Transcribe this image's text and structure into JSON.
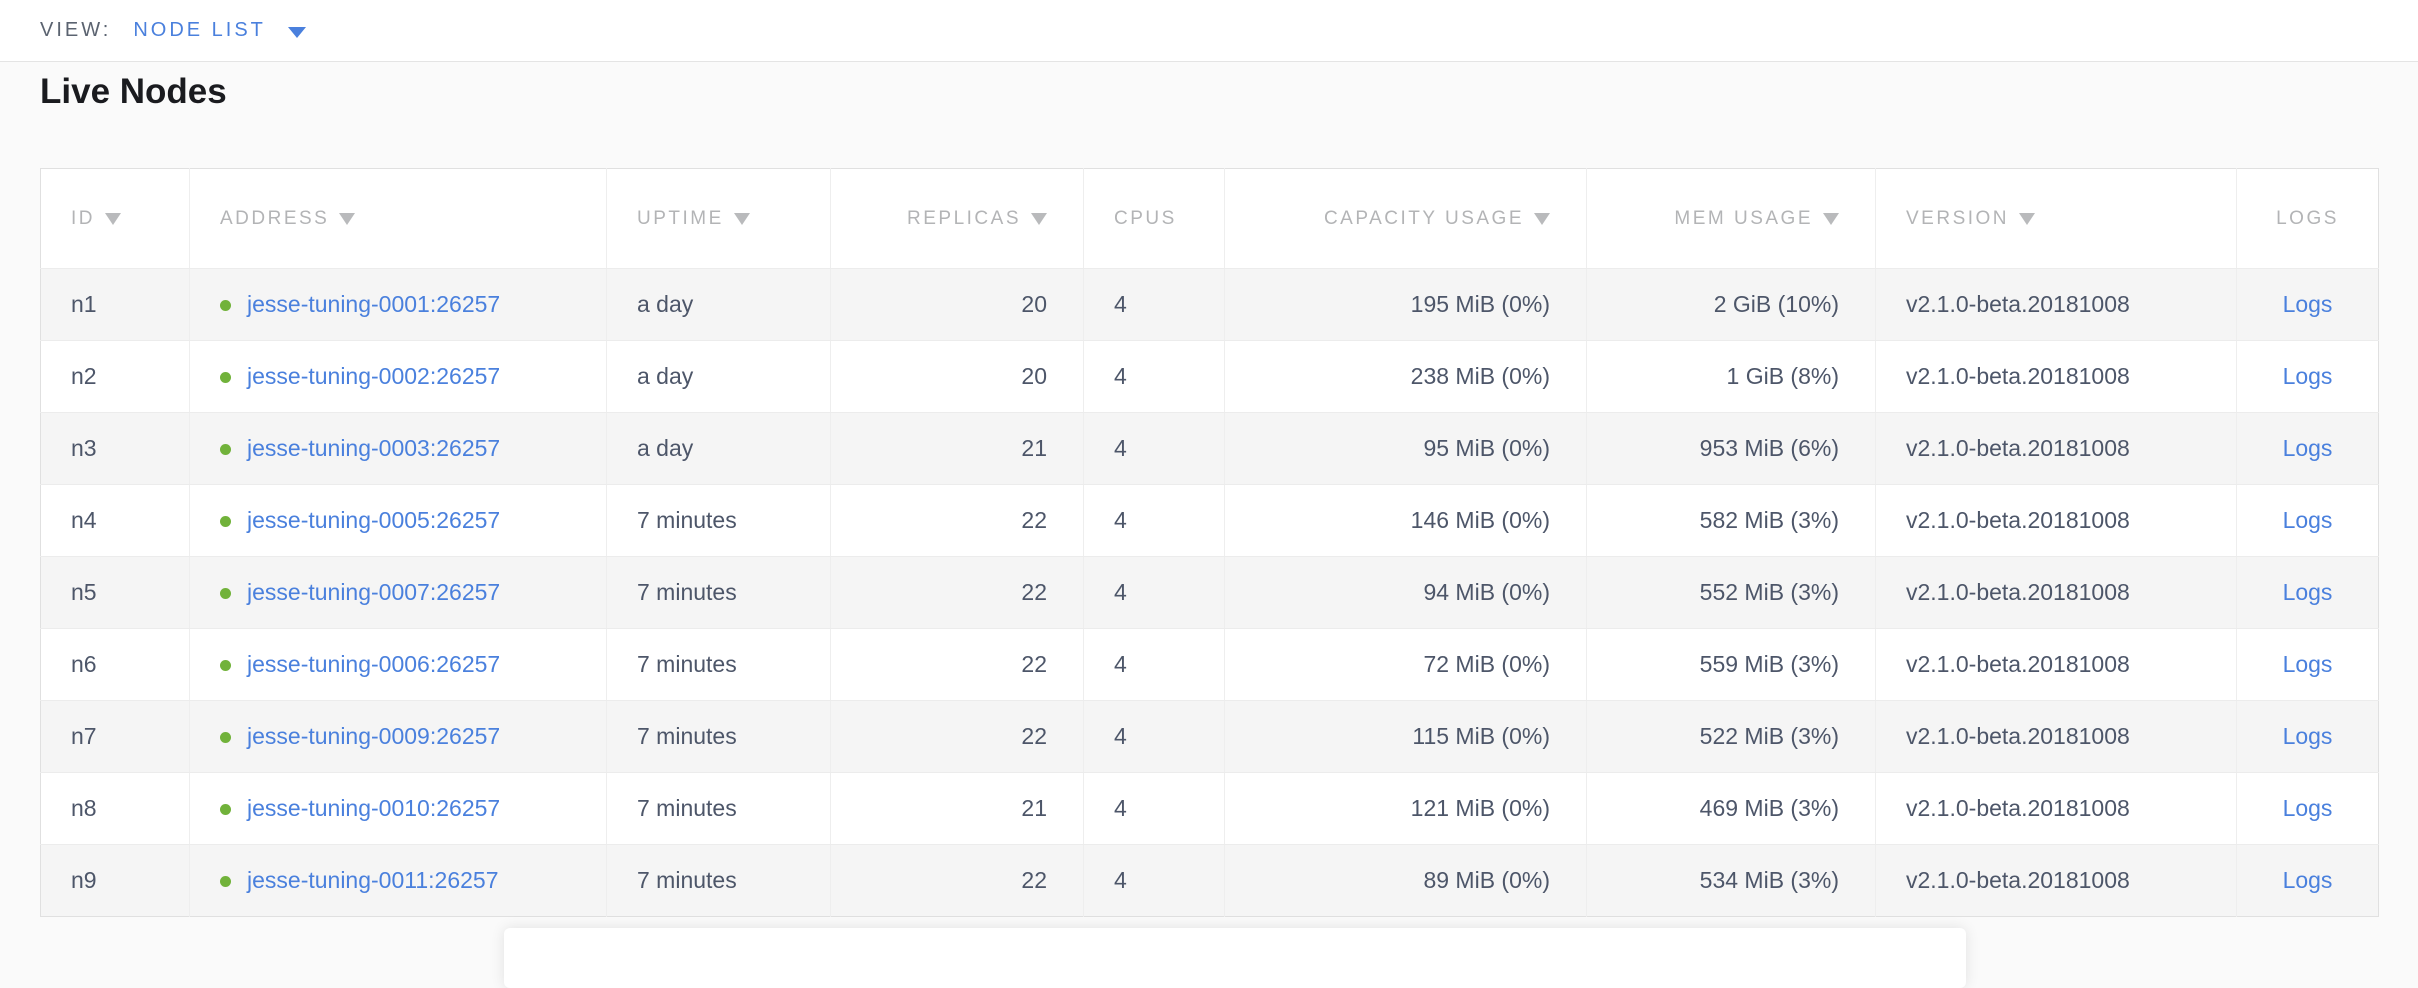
{
  "view_bar": {
    "label": "VIEW:",
    "selected_view": "NODE LIST"
  },
  "page": {
    "title": "Live Nodes"
  },
  "table": {
    "columns": [
      {
        "key": "id",
        "label": "ID",
        "sortable": true,
        "align": "left"
      },
      {
        "key": "address",
        "label": "ADDRESS",
        "sortable": true,
        "align": "left"
      },
      {
        "key": "uptime",
        "label": "UPTIME",
        "sortable": true,
        "align": "left"
      },
      {
        "key": "replicas",
        "label": "REPLICAS",
        "sortable": true,
        "align": "right"
      },
      {
        "key": "cpus",
        "label": "CPUS",
        "sortable": false,
        "align": "left"
      },
      {
        "key": "capacity",
        "label": "CAPACITY USAGE",
        "sortable": true,
        "align": "right"
      },
      {
        "key": "mem",
        "label": "MEM USAGE",
        "sortable": true,
        "align": "right"
      },
      {
        "key": "version",
        "label": "VERSION",
        "sortable": true,
        "align": "left"
      },
      {
        "key": "logs",
        "label": "LOGS",
        "sortable": false,
        "align": "center"
      }
    ],
    "rows": [
      {
        "id": "n1",
        "status": "live",
        "address": "jesse-tuning-0001:26257",
        "uptime": "a day",
        "replicas": "20",
        "cpus": "4",
        "capacity": "195 MiB (0%)",
        "mem": "2 GiB (10%)",
        "version": "v2.1.0-beta.20181008",
        "logs": "Logs"
      },
      {
        "id": "n2",
        "status": "live",
        "address": "jesse-tuning-0002:26257",
        "uptime": "a day",
        "replicas": "20",
        "cpus": "4",
        "capacity": "238 MiB (0%)",
        "mem": "1 GiB (8%)",
        "version": "v2.1.0-beta.20181008",
        "logs": "Logs"
      },
      {
        "id": "n3",
        "status": "live",
        "address": "jesse-tuning-0003:26257",
        "uptime": "a day",
        "replicas": "21",
        "cpus": "4",
        "capacity": "95 MiB (0%)",
        "mem": "953 MiB (6%)",
        "version": "v2.1.0-beta.20181008",
        "logs": "Logs"
      },
      {
        "id": "n4",
        "status": "live",
        "address": "jesse-tuning-0005:26257",
        "uptime": "7 minutes",
        "replicas": "22",
        "cpus": "4",
        "capacity": "146 MiB (0%)",
        "mem": "582 MiB (3%)",
        "version": "v2.1.0-beta.20181008",
        "logs": "Logs"
      },
      {
        "id": "n5",
        "status": "live",
        "address": "jesse-tuning-0007:26257",
        "uptime": "7 minutes",
        "replicas": "22",
        "cpus": "4",
        "capacity": "94 MiB (0%)",
        "mem": "552 MiB (3%)",
        "version": "v2.1.0-beta.20181008",
        "logs": "Logs"
      },
      {
        "id": "n6",
        "status": "live",
        "address": "jesse-tuning-0006:26257",
        "uptime": "7 minutes",
        "replicas": "22",
        "cpus": "4",
        "capacity": "72 MiB (0%)",
        "mem": "559 MiB (3%)",
        "version": "v2.1.0-beta.20181008",
        "logs": "Logs"
      },
      {
        "id": "n7",
        "status": "live",
        "address": "jesse-tuning-0009:26257",
        "uptime": "7 minutes",
        "replicas": "22",
        "cpus": "4",
        "capacity": "115 MiB (0%)",
        "mem": "522 MiB (3%)",
        "version": "v2.1.0-beta.20181008",
        "logs": "Logs"
      },
      {
        "id": "n8",
        "status": "live",
        "address": "jesse-tuning-0010:26257",
        "uptime": "7 minutes",
        "replicas": "21",
        "cpus": "4",
        "capacity": "121 MiB (0%)",
        "mem": "469 MiB (3%)",
        "version": "v2.1.0-beta.20181008",
        "logs": "Logs"
      },
      {
        "id": "n9",
        "status": "live",
        "address": "jesse-tuning-0011:26257",
        "uptime": "7 minutes",
        "replicas": "22",
        "cpus": "4",
        "capacity": "89 MiB (0%)",
        "mem": "534 MiB (3%)",
        "version": "v2.1.0-beta.20181008",
        "logs": "Logs"
      }
    ]
  },
  "colors": {
    "link_blue": "#4a80dd",
    "live_dot_green": "#71b23a",
    "header_gray": "#b3b4b6",
    "cell_slate": "#4d5669"
  }
}
